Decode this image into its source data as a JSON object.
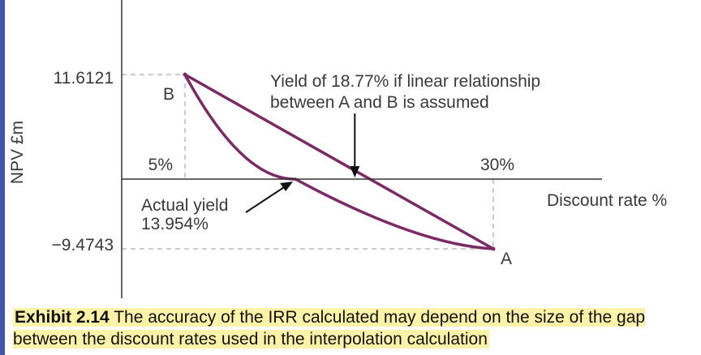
{
  "chart_data": {
    "type": "line",
    "ylabel": "NPV £m",
    "xlabel": "Discount rate %",
    "x_ticks": [
      "5%",
      "30%"
    ],
    "y_ticks": [
      "11.6121",
      "−9.4743"
    ],
    "point_labels": {
      "B": "B",
      "A": "A"
    },
    "series": [
      {
        "points": [
          [
            5,
            11.6121
          ],
          [
            13.954,
            0
          ],
          [
            30,
            -9.4743
          ]
        ]
      },
      {
        "points": [
          [
            5,
            11.6121
          ],
          [
            18.77,
            0
          ],
          [
            30,
            -9.4743
          ]
        ]
      }
    ],
    "annotations": {
      "linear_line1": "Yield of 18.77% if linear relationship",
      "linear_line2": "between A and B is assumed",
      "actual_line1": "Actual yield",
      "actual_line2": "13.954%"
    }
  },
  "caption": {
    "label": "Exhibit 2.14",
    "text": "The accuracy of the IRR calculated may depend on the size of the gap between the discount rates used in the interpolation calculation"
  },
  "colors": {
    "curve": "#7b2a66",
    "axis": "#333333",
    "dashed": "#9a9a9a",
    "highlight": "#fdf3a8",
    "left_bar": "#3f56a8"
  }
}
